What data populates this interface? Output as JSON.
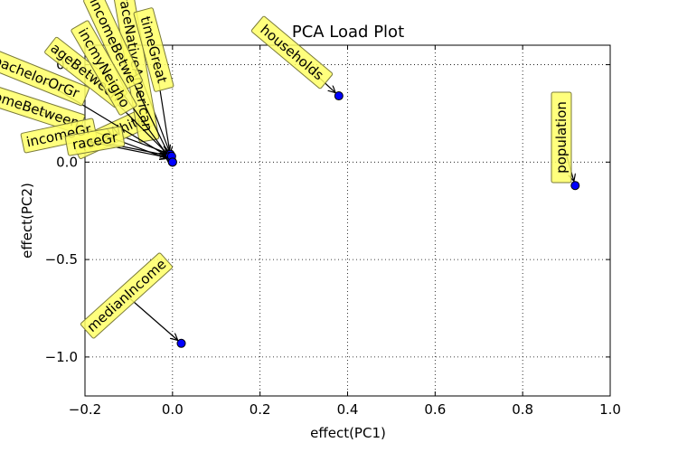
{
  "chart_data": {
    "type": "scatter",
    "title": "PCA Load Plot",
    "xlabel": "effect(PC1)",
    "ylabel": "effect(PC2)",
    "xlim": [
      -0.2,
      1.0
    ],
    "ylim": [
      -1.2,
      0.6
    ],
    "xticks": [
      -0.2,
      0.0,
      0.2,
      0.4,
      0.6,
      0.8,
      1.0
    ],
    "yticks": [
      -1.0,
      -0.5,
      0.0,
      0.5
    ],
    "xtick_labels": [
      "−0.2",
      "0.0",
      "0.2",
      "0.4",
      "0.6",
      "0.8",
      "1.0"
    ],
    "ytick_labels": [
      "−1.0",
      "−0.5",
      "0.0",
      "0.5"
    ],
    "grid": true,
    "marker_color": "#0000ff",
    "annotation_box_color": "#ffff66",
    "points": [
      {
        "label": "population",
        "x": 0.92,
        "y": -0.12
      },
      {
        "label": "households",
        "x": 0.38,
        "y": 0.34
      },
      {
        "label": "medianIncome",
        "x": 0.02,
        "y": -0.93
      },
      {
        "label": "raceWhite",
        "x": -0.005,
        "y": 0.04
      },
      {
        "label": "raceNativeAmerican",
        "x": -0.003,
        "y": 0.03
      },
      {
        "label": "timeGreat",
        "x": -0.004,
        "y": 0.02
      },
      {
        "label": "ageBetween",
        "x": -0.006,
        "y": 0.03
      },
      {
        "label": "incomeBetween",
        "x": -0.002,
        "y": 0.01
      },
      {
        "label": "bachelorOrGr",
        "x": -0.004,
        "y": 0.02
      },
      {
        "label": "incomeGr",
        "x": -0.003,
        "y": 0.02
      },
      {
        "label": "raceGr",
        "x": -0.002,
        "y": 0.03
      },
      {
        "label": "incomeBetwe",
        "x": 0.0,
        "y": 0.0
      },
      {
        "label": "incmyNeigho",
        "x": 0.0,
        "y": 0.0
      }
    ]
  }
}
